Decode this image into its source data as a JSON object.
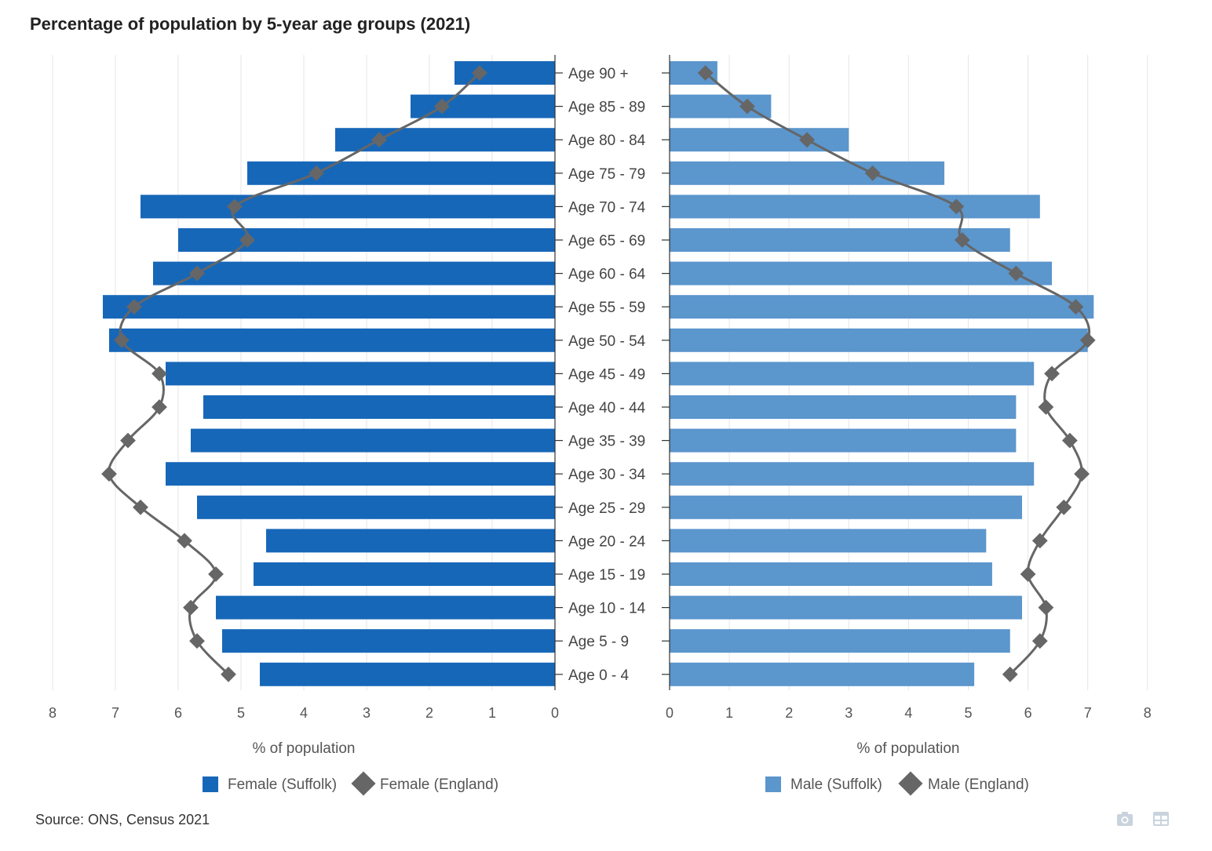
{
  "chart_data": {
    "type": "bar",
    "title": "Percentage of population by 5-year age groups (2021)",
    "categories": [
      "Age 90 +",
      "Age 85 - 89",
      "Age 80 - 84",
      "Age 75 - 79",
      "Age 70 - 74",
      "Age 65 - 69",
      "Age 60 - 64",
      "Age 55 - 59",
      "Age 50 - 54",
      "Age 45 - 49",
      "Age 40 - 44",
      "Age 35 - 39",
      "Age 30 - 34",
      "Age 25 - 29",
      "Age 20 - 24",
      "Age 15 - 19",
      "Age 10 - 14",
      "Age 5 - 9",
      "Age 0 - 4"
    ],
    "xlabel_left": "% of population",
    "xlabel_right": "% of population",
    "xlim": [
      0,
      8
    ],
    "xticks": [
      0,
      1,
      2,
      3,
      4,
      5,
      6,
      7,
      8
    ],
    "grid": true,
    "legend_position": "bottom",
    "series": [
      {
        "name": "Female (Suffolk)",
        "kind": "bar",
        "side": "left",
        "color": "#1767b8",
        "values": [
          1.6,
          2.3,
          3.5,
          4.9,
          6.6,
          6.0,
          6.4,
          7.2,
          7.1,
          6.2,
          5.6,
          5.8,
          6.2,
          5.7,
          4.6,
          4.8,
          5.4,
          5.3,
          4.7
        ]
      },
      {
        "name": "Female (England)",
        "kind": "line",
        "side": "left",
        "color": "#666666",
        "values": [
          1.2,
          1.8,
          2.8,
          3.8,
          5.1,
          4.9,
          5.7,
          6.7,
          6.9,
          6.3,
          6.3,
          6.8,
          7.1,
          6.6,
          5.9,
          5.4,
          5.8,
          5.7,
          5.2
        ]
      },
      {
        "name": "Male (Suffolk)",
        "kind": "bar",
        "side": "right",
        "color": "#5b96cd",
        "values": [
          0.8,
          1.7,
          3.0,
          4.6,
          6.2,
          5.7,
          6.4,
          7.1,
          7.0,
          6.1,
          5.8,
          5.8,
          6.1,
          5.9,
          5.3,
          5.4,
          5.9,
          5.7,
          5.1
        ]
      },
      {
        "name": "Male (England)",
        "kind": "line",
        "side": "right",
        "color": "#666666",
        "values": [
          0.6,
          1.3,
          2.3,
          3.4,
          4.8,
          4.9,
          5.8,
          6.8,
          7.0,
          6.4,
          6.3,
          6.7,
          6.9,
          6.6,
          6.2,
          6.0,
          6.3,
          6.2,
          5.7
        ]
      }
    ]
  },
  "source": "Source: ONS, Census 2021",
  "toolbar": {
    "camera_icon": "camera-icon",
    "table_icon": "table-icon"
  }
}
